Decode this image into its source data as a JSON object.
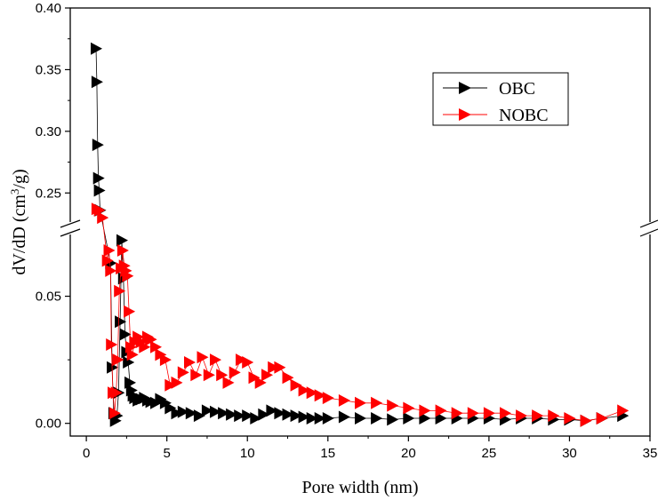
{
  "chart_data": {
    "type": "scatter",
    "title": "",
    "xlabel": "Pore width (nm)",
    "ylabel_main": "dV/dD (cm",
    "ylabel_sup": "3",
    "ylabel_end": "/g)",
    "xlim": [
      -1,
      35
    ],
    "ylim_lower": [
      -0.005,
      0.075
    ],
    "ylim_upper": [
      0.225,
      0.4
    ],
    "axis_break": true,
    "grid": false,
    "legend_position": "top-right",
    "x_ticks": [
      "0",
      "5",
      "10",
      "15",
      "20",
      "25",
      "30",
      "35"
    ],
    "y_ticks_lower": [
      "0.00",
      "0.05"
    ],
    "y_ticks_upper": [
      "0.25",
      "0.30",
      "0.35",
      "0.40"
    ],
    "series": [
      {
        "name": "OBC",
        "color": "#000000",
        "points": [
          [
            0.6,
            0.367
          ],
          [
            0.65,
            0.34
          ],
          [
            0.7,
            0.289
          ],
          [
            0.75,
            0.262
          ],
          [
            0.8,
            0.252
          ],
          [
            0.85,
            0.236
          ],
          [
            1.5,
            0.063
          ],
          [
            1.6,
            0.022
          ],
          [
            1.7,
            0.004
          ],
          [
            1.8,
            0.001
          ],
          [
            1.9,
            0.003
          ],
          [
            2.0,
            0.012
          ],
          [
            2.1,
            0.04
          ],
          [
            2.2,
            0.072
          ],
          [
            2.3,
            0.057
          ],
          [
            2.4,
            0.035
          ],
          [
            2.5,
            0.028
          ],
          [
            2.6,
            0.024
          ],
          [
            2.7,
            0.016
          ],
          [
            2.8,
            0.013
          ],
          [
            2.9,
            0.011
          ],
          [
            3.0,
            0.01
          ],
          [
            3.2,
            0.009
          ],
          [
            3.4,
            0.0095
          ],
          [
            3.6,
            0.01
          ],
          [
            3.8,
            0.009
          ],
          [
            4.0,
            0.0085
          ],
          [
            4.3,
            0.008
          ],
          [
            4.6,
            0.0095
          ],
          [
            4.9,
            0.008
          ],
          [
            5.2,
            0.006
          ],
          [
            5.6,
            0.004
          ],
          [
            6.0,
            0.0045
          ],
          [
            6.5,
            0.004
          ],
          [
            7.0,
            0.003
          ],
          [
            7.5,
            0.005
          ],
          [
            8.0,
            0.0045
          ],
          [
            8.5,
            0.004
          ],
          [
            9.0,
            0.0035
          ],
          [
            9.5,
            0.003
          ],
          [
            10.0,
            0.003
          ],
          [
            10.5,
            0.002
          ],
          [
            11.0,
            0.0035
          ],
          [
            11.5,
            0.005
          ],
          [
            12.0,
            0.004
          ],
          [
            12.5,
            0.0035
          ],
          [
            13.0,
            0.003
          ],
          [
            13.5,
            0.0025
          ],
          [
            14.0,
            0.002
          ],
          [
            14.5,
            0.002
          ],
          [
            15.0,
            0.002
          ],
          [
            16.0,
            0.0025
          ],
          [
            17.0,
            0.002
          ],
          [
            18.0,
            0.002
          ],
          [
            19.0,
            0.0015
          ],
          [
            20.0,
            0.002
          ],
          [
            21.0,
            0.002
          ],
          [
            22.0,
            0.002
          ],
          [
            23.0,
            0.002
          ],
          [
            24.0,
            0.002
          ],
          [
            25.0,
            0.002
          ],
          [
            26.0,
            0.0015
          ],
          [
            27.0,
            0.002
          ],
          [
            28.0,
            0.002
          ],
          [
            29.0,
            0.0015
          ],
          [
            30.0,
            0.0015
          ],
          [
            31.0,
            0.001
          ],
          [
            32.0,
            0.002
          ],
          [
            33.3,
            0.003
          ]
        ]
      },
      {
        "name": "NOBC",
        "color": "#ff0000",
        "points": [
          [
            0.65,
            0.237
          ],
          [
            0.8,
            0.236
          ],
          [
            1.0,
            0.23
          ],
          [
            1.3,
            0.064
          ],
          [
            1.4,
            0.068
          ],
          [
            1.5,
            0.06
          ],
          [
            1.55,
            0.031
          ],
          [
            1.65,
            0.012
          ],
          [
            1.75,
            0.004
          ],
          [
            1.85,
            0.012
          ],
          [
            1.95,
            0.025
          ],
          [
            2.05,
            0.052
          ],
          [
            2.15,
            0.061
          ],
          [
            2.25,
            0.068
          ],
          [
            2.35,
            0.062
          ],
          [
            2.45,
            0.06
          ],
          [
            2.55,
            0.058
          ],
          [
            2.65,
            0.044
          ],
          [
            2.75,
            0.03
          ],
          [
            2.85,
            0.027
          ],
          [
            3.0,
            0.032
          ],
          [
            3.2,
            0.034
          ],
          [
            3.4,
            0.032
          ],
          [
            3.6,
            0.03
          ],
          [
            3.8,
            0.034
          ],
          [
            4.0,
            0.033
          ],
          [
            4.3,
            0.03
          ],
          [
            4.6,
            0.027
          ],
          [
            4.9,
            0.025
          ],
          [
            5.2,
            0.015
          ],
          [
            5.6,
            0.016
          ],
          [
            6.0,
            0.02
          ],
          [
            6.4,
            0.024
          ],
          [
            6.8,
            0.019
          ],
          [
            7.2,
            0.026
          ],
          [
            7.6,
            0.019
          ],
          [
            8.0,
            0.025
          ],
          [
            8.4,
            0.019
          ],
          [
            8.8,
            0.016
          ],
          [
            9.2,
            0.02
          ],
          [
            9.6,
            0.025
          ],
          [
            10.0,
            0.024
          ],
          [
            10.4,
            0.018
          ],
          [
            10.8,
            0.016
          ],
          [
            11.2,
            0.019
          ],
          [
            11.6,
            0.022
          ],
          [
            12.0,
            0.022
          ],
          [
            12.5,
            0.018
          ],
          [
            13.0,
            0.015
          ],
          [
            13.5,
            0.013
          ],
          [
            14.0,
            0.012
          ],
          [
            14.5,
            0.011
          ],
          [
            15.0,
            0.01
          ],
          [
            16.0,
            0.009
          ],
          [
            17.0,
            0.008
          ],
          [
            18.0,
            0.008
          ],
          [
            19.0,
            0.007
          ],
          [
            20.0,
            0.006
          ],
          [
            21.0,
            0.005
          ],
          [
            22.0,
            0.005
          ],
          [
            23.0,
            0.004
          ],
          [
            24.0,
            0.004
          ],
          [
            25.0,
            0.004
          ],
          [
            26.0,
            0.004
          ],
          [
            27.0,
            0.003
          ],
          [
            28.0,
            0.003
          ],
          [
            29.0,
            0.003
          ],
          [
            30.0,
            0.002
          ],
          [
            31.0,
            0.001
          ],
          [
            32.0,
            0.002
          ],
          [
            33.3,
            0.005
          ]
        ]
      }
    ]
  }
}
